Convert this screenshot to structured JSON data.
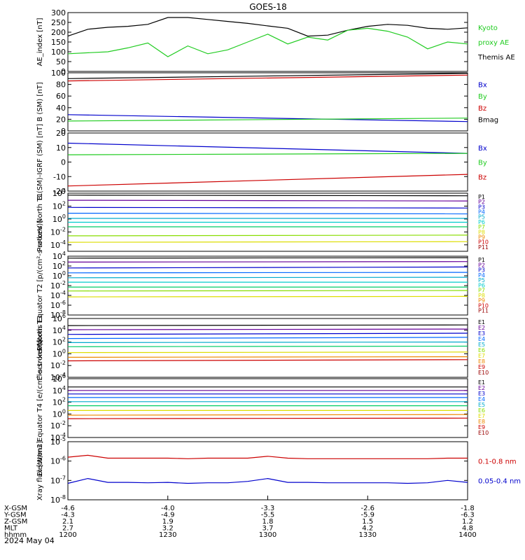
{
  "title": "GOES-18",
  "date_label": "2024 May 04",
  "colors": {
    "black": "#000000",
    "green": "#22cc22",
    "blue": "#0000cc",
    "red": "#cc0000",
    "p_colors": [
      "#000000",
      "#660099",
      "#0000cc",
      "#0066ff",
      "#00aacc",
      "#00cccc",
      "#00cc66",
      "#88dd00",
      "#dddd00",
      "#ee8800",
      "#cc0000",
      "#990000"
    ]
  },
  "chart_data": [
    {
      "type": "line",
      "ylabel": "AE_index [nT]",
      "ylim": [
        0,
        300
      ],
      "yticks": [
        "0",
        "50",
        "100",
        "150",
        "200",
        "250",
        "300"
      ],
      "legend": [
        {
          "text": "Kyoto",
          "color": "green"
        },
        {
          "text": "proxy AE",
          "color": "green"
        },
        {
          "text": "Themis AE",
          "color": "black"
        }
      ],
      "x": [
        1200,
        1206,
        1212,
        1218,
        1224,
        1230,
        1236,
        1242,
        1248,
        1254,
        1300,
        1306,
        1312,
        1318,
        1324,
        1330,
        1336,
        1342,
        1348,
        1354,
        1400
      ],
      "series": [
        {
          "name": "Themis AE",
          "color": "black",
          "values": [
            180,
            215,
            225,
            230,
            240,
            275,
            275,
            265,
            255,
            245,
            232,
            220,
            180,
            185,
            210,
            230,
            240,
            235,
            220,
            215,
            222
          ]
        },
        {
          "name": "Kyoto proxy AE",
          "color": "green",
          "values": [
            90,
            95,
            100,
            120,
            145,
            75,
            130,
            90,
            110,
            150,
            190,
            140,
            175,
            160,
            210,
            220,
            205,
            175,
            115,
            150,
            140
          ]
        }
      ]
    },
    {
      "type": "line",
      "ylabel": "B (SM) [nT]",
      "ylim": [
        0,
        100
      ],
      "yticks": [
        "0",
        "20",
        "40",
        "60",
        "80",
        "100"
      ],
      "legend": [
        {
          "text": "Bx",
          "color": "blue"
        },
        {
          "text": "By",
          "color": "green"
        },
        {
          "text": "Bz",
          "color": "red"
        },
        {
          "text": "Bmag",
          "color": "black"
        }
      ],
      "x": [
        1200,
        1400
      ],
      "series": [
        {
          "name": "Bmag",
          "color": "black",
          "values": [
            90,
            99
          ]
        },
        {
          "name": "Bz",
          "color": "red",
          "values": [
            86,
            96
          ]
        },
        {
          "name": "Bx",
          "color": "blue",
          "values": [
            28,
            16
          ]
        },
        {
          "name": "By",
          "color": "green",
          "values": [
            17,
            22
          ]
        }
      ]
    },
    {
      "type": "line",
      "ylabel": "B (SM)-IGRF (SM) [nT]",
      "ylim": [
        -20,
        20
      ],
      "yticks": [
        "-20",
        "-10",
        "0",
        "10",
        "20"
      ],
      "legend": [
        {
          "text": "Bx",
          "color": "blue"
        },
        {
          "text": "By",
          "color": "green"
        },
        {
          "text": "Bz",
          "color": "red"
        }
      ],
      "x": [
        1200,
        1400
      ],
      "series": [
        {
          "name": "Bx",
          "color": "blue",
          "values": [
            13,
            6
          ]
        },
        {
          "name": "By",
          "color": "green",
          "values": [
            5,
            6
          ]
        },
        {
          "name": "Bz",
          "color": "red",
          "values": [
            -16.5,
            -8.5
          ]
        }
      ]
    },
    {
      "type": "line",
      "ylabel": "Protons North T1",
      "log": true,
      "ylim": [
        -5,
        4
      ],
      "yticks": [
        {
          "exp": "4",
          "v": 4
        },
        {
          "exp": "2",
          "v": 2
        },
        {
          "exp": "0",
          "v": 0
        },
        {
          "exp": "-2",
          "v": -2
        },
        {
          "exp": "-4",
          "v": -4
        }
      ],
      "legend": [
        {
          "text": "P1",
          "ci": 0
        },
        {
          "text": "P2",
          "ci": 1
        },
        {
          "text": "P3",
          "ci": 2
        },
        {
          "text": "P4",
          "ci": 3
        },
        {
          "text": "P5",
          "ci": 4
        },
        {
          "text": "P6",
          "ci": 5
        },
        {
          "text": "P7",
          "ci": 7
        },
        {
          "text": "P8",
          "ci": 8
        },
        {
          "text": "P9",
          "ci": 9
        },
        {
          "text": "P10",
          "ci": 10
        },
        {
          "text": "P11",
          "ci": 11
        }
      ],
      "x": [
        1200,
        1400
      ],
      "series": [
        {
          "ci": 0,
          "values": [
            3.7,
            3.6
          ]
        },
        {
          "ci": 1,
          "values": [
            2.9,
            2.8
          ]
        },
        {
          "ci": 2,
          "values": [
            1.8,
            1.7
          ]
        },
        {
          "ci": 3,
          "values": [
            0.9,
            0.8
          ]
        },
        {
          "ci": 4,
          "values": [
            0.1,
            0.1
          ]
        },
        {
          "ci": 5,
          "values": [
            -0.5,
            -0.5
          ]
        },
        {
          "ci": 6,
          "values": [
            -1.2,
            -1.2
          ]
        },
        {
          "ci": 7,
          "values": [
            -2.6,
            -2.5
          ]
        },
        {
          "ci": 8,
          "values": [
            -3.6,
            -3.5
          ]
        }
      ]
    },
    {
      "type": "line",
      "ylabel": "Protons Equator T2 [p/(cm²-s-sr-keV)]",
      "log": true,
      "ylim": [
        -8,
        4
      ],
      "yticks": [
        {
          "exp": "4",
          "v": 4
        },
        {
          "exp": "2",
          "v": 2
        },
        {
          "exp": "0",
          "v": 0
        },
        {
          "exp": "-2",
          "v": -2
        },
        {
          "exp": "-4",
          "v": -4
        },
        {
          "exp": "-6",
          "v": -6
        },
        {
          "exp": "-8",
          "v": -8
        }
      ],
      "legend": [
        {
          "text": "P1",
          "ci": 0
        },
        {
          "text": "P2",
          "ci": 1
        },
        {
          "text": "P3",
          "ci": 2
        },
        {
          "text": "P4",
          "ci": 3
        },
        {
          "text": "P5",
          "ci": 4
        },
        {
          "text": "P6",
          "ci": 5
        },
        {
          "text": "P7",
          "ci": 7
        },
        {
          "text": "P8",
          "ci": 8
        },
        {
          "text": "P9",
          "ci": 9
        },
        {
          "text": "P10",
          "ci": 10
        },
        {
          "text": "P11",
          "ci": 11
        }
      ],
      "x": [
        1200,
        1400
      ],
      "series": [
        {
          "ci": 0,
          "values": [
            3.6,
            3.7
          ]
        },
        {
          "ci": 1,
          "values": [
            2.8,
            2.9
          ]
        },
        {
          "ci": 2,
          "values": [
            1.6,
            1.8
          ]
        },
        {
          "ci": 3,
          "values": [
            0.6,
            0.7
          ]
        },
        {
          "ci": 4,
          "values": [
            -0.4,
            -0.3
          ]
        },
        {
          "ci": 5,
          "values": [
            -1.3,
            -1.3
          ]
        },
        {
          "ci": 6,
          "values": [
            -2.3,
            -2.3
          ]
        },
        {
          "ci": 7,
          "values": [
            -3.1,
            -3.0
          ]
        },
        {
          "ci": 8,
          "values": [
            -4.3,
            -4.2
          ]
        }
      ]
    },
    {
      "type": "line",
      "ylabel": "Electrons North T3",
      "log": true,
      "ylim": [
        -4,
        6
      ],
      "yticks": [
        {
          "exp": "6",
          "v": 6
        },
        {
          "exp": "4",
          "v": 4
        },
        {
          "exp": "2",
          "v": 2
        },
        {
          "exp": "0",
          "v": 0
        },
        {
          "exp": "-2",
          "v": -2
        },
        {
          "exp": "-4",
          "v": -4
        }
      ],
      "legend": [
        {
          "text": "E1",
          "ci": 0
        },
        {
          "text": "E2",
          "ci": 1
        },
        {
          "text": "E3",
          "ci": 2
        },
        {
          "text": "E4",
          "ci": 3
        },
        {
          "text": "E5",
          "ci": 4
        },
        {
          "text": "E6",
          "ci": 7
        },
        {
          "text": "E7",
          "ci": 8
        },
        {
          "text": "E8",
          "ci": 9
        },
        {
          "text": "E9",
          "ci": 10
        },
        {
          "text": "E10",
          "ci": 11
        }
      ],
      "x": [
        1200,
        1400
      ],
      "series": [
        {
          "ci": 0,
          "values": [
            4.8,
            4.9
          ]
        },
        {
          "ci": 1,
          "values": [
            4.1,
            4.2
          ]
        },
        {
          "ci": 2,
          "values": [
            3.3,
            3.5
          ]
        },
        {
          "ci": 3,
          "values": [
            2.6,
            2.8
          ]
        },
        {
          "ci": 4,
          "values": [
            1.9,
            2.0
          ]
        },
        {
          "ci": 6,
          "values": [
            1.2,
            1.3
          ]
        },
        {
          "ci": 8,
          "values": [
            0.2,
            0.3
          ]
        },
        {
          "ci": 9,
          "values": [
            -0.6,
            -0.5
          ]
        },
        {
          "ci": 10,
          "values": [
            -1.2,
            -1.0
          ]
        }
      ]
    },
    {
      "type": "line",
      "ylabel": "Electrons Equator T4 [e/(cm²-s-sr-keV)]",
      "log": true,
      "ylim": [
        -4,
        6
      ],
      "yticks": [
        {
          "exp": "6",
          "v": 6
        },
        {
          "exp": "4",
          "v": 4
        },
        {
          "exp": "2",
          "v": 2
        },
        {
          "exp": "0",
          "v": 0
        },
        {
          "exp": "-2",
          "v": -2
        },
        {
          "exp": "-4",
          "v": -4
        }
      ],
      "legend": [
        {
          "text": "E1",
          "ci": 0
        },
        {
          "text": "E2",
          "ci": 1
        },
        {
          "text": "E3",
          "ci": 2
        },
        {
          "text": "E4",
          "ci": 3
        },
        {
          "text": "E5",
          "ci": 4
        },
        {
          "text": "E6",
          "ci": 7
        },
        {
          "text": "E7",
          "ci": 8
        },
        {
          "text": "E8",
          "ci": 9
        },
        {
          "text": "E9",
          "ci": 10
        },
        {
          "text": "E10",
          "ci": 11
        }
      ],
      "x": [
        1200,
        1400
      ],
      "series": [
        {
          "ci": 0,
          "values": [
            4.6,
            4.6
          ]
        },
        {
          "ci": 1,
          "values": [
            4.0,
            4.0
          ]
        },
        {
          "ci": 2,
          "values": [
            3.4,
            3.4
          ]
        },
        {
          "ci": 3,
          "values": [
            2.8,
            2.8
          ]
        },
        {
          "ci": 4,
          "values": [
            2.1,
            2.1
          ]
        },
        {
          "ci": 6,
          "values": [
            1.4,
            1.4
          ]
        },
        {
          "ci": 8,
          "values": [
            0.6,
            0.6
          ]
        },
        {
          "ci": 9,
          "values": [
            -0.2,
            -0.1
          ]
        },
        {
          "ci": 10,
          "values": [
            -0.8,
            -0.7
          ]
        }
      ]
    },
    {
      "type": "line",
      "ylabel": "Xray flux [W/m2]",
      "log": true,
      "ylim": [
        -8,
        -5
      ],
      "yticks": [
        {
          "exp": "-5",
          "v": -5
        },
        {
          "exp": "-6",
          "v": -6
        },
        {
          "exp": "-7",
          "v": -7
        },
        {
          "exp": "-8",
          "v": -8
        }
      ],
      "legend": [
        {
          "text": "0.1-0.8 nm",
          "color": "red"
        },
        {
          "text": "0.05-0.4 nm",
          "color": "blue"
        }
      ],
      "x": [
        1200,
        1206,
        1212,
        1218,
        1224,
        1230,
        1236,
        1242,
        1248,
        1254,
        1300,
        1306,
        1312,
        1318,
        1324,
        1330,
        1336,
        1342,
        1348,
        1354,
        1400
      ],
      "series": [
        {
          "name": "0.1-0.8 nm",
          "color": "red",
          "values": [
            -5.8,
            -5.7,
            -5.85,
            -5.85,
            -5.85,
            -5.85,
            -5.88,
            -5.85,
            -5.85,
            -5.85,
            -5.75,
            -5.85,
            -5.88,
            -5.88,
            -5.88,
            -5.88,
            -5.88,
            -5.88,
            -5.88,
            -5.85,
            -5.85
          ]
        },
        {
          "name": "0.05-0.4 nm",
          "color": "blue",
          "values": [
            -7.15,
            -6.9,
            -7.1,
            -7.1,
            -7.12,
            -7.1,
            -7.15,
            -7.12,
            -7.12,
            -7.05,
            -6.9,
            -7.1,
            -7.1,
            -7.12,
            -7.12,
            -7.12,
            -7.12,
            -7.15,
            -7.12,
            -7.0,
            -7.1
          ]
        }
      ]
    }
  ],
  "x_axis": {
    "ticks": [
      1200,
      1230,
      1300,
      1330,
      1400
    ],
    "rows": [
      {
        "label": "X-GSM",
        "values": [
          "-4.6",
          "-4.0",
          "-3.3",
          "-2.6",
          "-1.8"
        ]
      },
      {
        "label": "Y-GSM",
        "values": [
          "-4.3",
          "-4.9",
          "-5.5",
          "-5.9",
          "-6.3"
        ]
      },
      {
        "label": "Z-GSM",
        "values": [
          "2.1",
          "1.9",
          "1.8",
          "1.5",
          "1.2"
        ]
      },
      {
        "label": "MLT",
        "values": [
          "2.7",
          "3.2",
          "3.7",
          "4.2",
          "4.8"
        ]
      },
      {
        "label": "hhmm",
        "values": [
          "1200",
          "1230",
          "1300",
          "1330",
          "1400"
        ]
      }
    ]
  }
}
